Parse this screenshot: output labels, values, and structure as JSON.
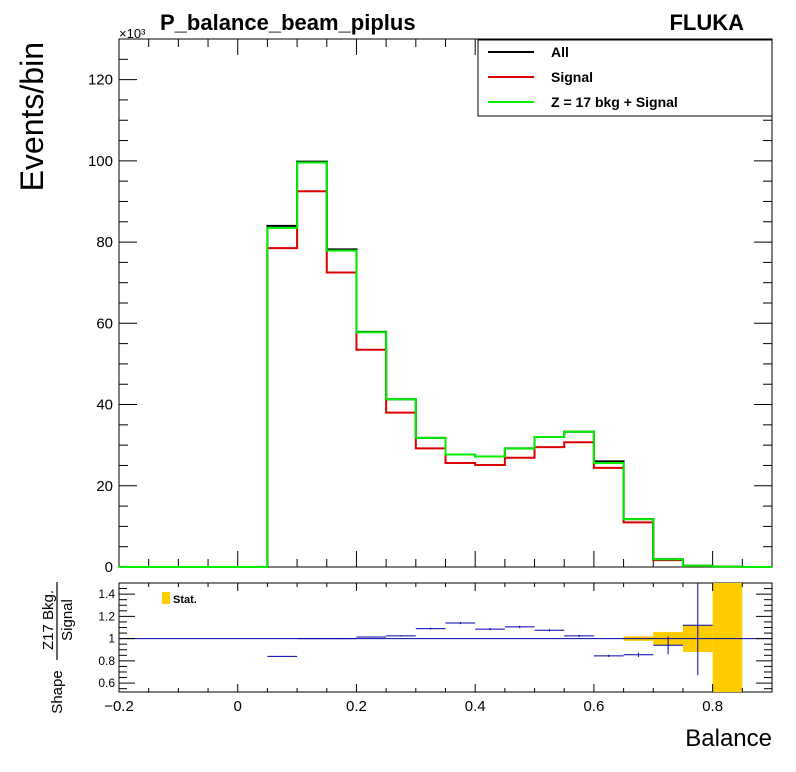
{
  "chart_data": [
    {
      "type": "line",
      "panel": "main",
      "title": "P_balance_beam_piplus",
      "generator_label": "FLUKA",
      "ylabel": "Events/bin",
      "y_multiplier_label": "×10³",
      "ylim": [
        0,
        130
      ],
      "xlim": [
        -0.2,
        0.9
      ],
      "yticks": [
        "0",
        "20",
        "40",
        "60",
        "80",
        "100",
        "120"
      ],
      "ytick_values": [
        0,
        20,
        40,
        60,
        80,
        100,
        120
      ],
      "legend_position": "top-right",
      "bin_edges": [
        -0.2,
        -0.15,
        -0.1,
        -0.05,
        0.0,
        0.05,
        0.1,
        0.15,
        0.2,
        0.25,
        0.3,
        0.35,
        0.4,
        0.45,
        0.5,
        0.55,
        0.6,
        0.65,
        0.7,
        0.75,
        0.8,
        0.85,
        0.9
      ],
      "series": [
        {
          "name": "All",
          "color": "#000000",
          "values": [
            0,
            0,
            0,
            0,
            0,
            84,
            99.8,
            78.2,
            57.9,
            41.3,
            31.8,
            27.7,
            27.2,
            29.2,
            32.0,
            33.3,
            26.0,
            11.8,
            1.9,
            0.3,
            0.1,
            0.0
          ]
        },
        {
          "name": "Signal",
          "color": "#dd0000",
          "values": [
            0,
            0,
            0,
            0,
            0,
            78.5,
            92.5,
            72.5,
            53.5,
            38.0,
            29.2,
            25.6,
            25.1,
            26.9,
            29.5,
            30.7,
            24.4,
            11.0,
            1.7,
            0.25,
            0.08,
            0.0
          ]
        },
        {
          "name": "Z = 17 bkg + Signal",
          "color": "#00ee00",
          "values": [
            0,
            0,
            0,
            0,
            0,
            83.5,
            99.6,
            77.9,
            57.8,
            41.3,
            31.8,
            27.7,
            27.2,
            29.2,
            32.0,
            33.3,
            25.6,
            11.8,
            1.9,
            0.3,
            0.1,
            0.0
          ]
        }
      ]
    },
    {
      "type": "scatter",
      "panel": "ratio",
      "ylabel_prefix": "Shape",
      "ylabel_numerator": "Z17 Bkg.",
      "ylabel_denominator": "Signal",
      "xlabel": "Balance",
      "ylim": [
        0.52,
        1.5
      ],
      "xlim": [
        -0.2,
        0.9
      ],
      "yticks": [
        "0.6",
        "0.8",
        "1",
        "1.2",
        "1.4"
      ],
      "ytick_values": [
        0.6,
        0.8,
        1.0,
        1.2,
        1.4
      ],
      "xticks": [
        "−0.2",
        "0",
        "0.2",
        "0.4",
        "0.6",
        "0.8"
      ],
      "xtick_values": [
        -0.2,
        0.0,
        0.2,
        0.4,
        0.6,
        0.8
      ],
      "reference_line": 1.0,
      "legend_entry": "Stat.",
      "stat_band_color": "#ffcc00",
      "point_color": "#0000aa",
      "points": [
        {
          "x": 0.075,
          "y": 0.84,
          "err": 0.005
        },
        {
          "x": 0.125,
          "y": 1.0,
          "err": 0.005
        },
        {
          "x": 0.175,
          "y": 1.0,
          "err": 0.005
        },
        {
          "x": 0.225,
          "y": 1.015,
          "err": 0.005
        },
        {
          "x": 0.275,
          "y": 1.025,
          "err": 0.006
        },
        {
          "x": 0.325,
          "y": 1.09,
          "err": 0.008
        },
        {
          "x": 0.375,
          "y": 1.14,
          "err": 0.01
        },
        {
          "x": 0.425,
          "y": 1.085,
          "err": 0.01
        },
        {
          "x": 0.475,
          "y": 1.105,
          "err": 0.01
        },
        {
          "x": 0.525,
          "y": 1.075,
          "err": 0.01
        },
        {
          "x": 0.575,
          "y": 1.025,
          "err": 0.01
        },
        {
          "x": 0.625,
          "y": 0.845,
          "err": 0.01
        },
        {
          "x": 0.675,
          "y": 0.855,
          "err": 0.02
        },
        {
          "x": 0.725,
          "y": 0.94,
          "err": 0.08
        },
        {
          "x": 0.775,
          "y": 1.12,
          "err": 0.45
        }
      ],
      "stat_band": [
        {
          "x0": 0.65,
          "x1": 0.7,
          "lo": 0.98,
          "hi": 1.02
        },
        {
          "x0": 0.7,
          "x1": 0.75,
          "lo": 0.94,
          "hi": 1.06
        },
        {
          "x0": 0.75,
          "x1": 0.8,
          "lo": 0.88,
          "hi": 1.12
        },
        {
          "x0": 0.8,
          "x1": 0.85,
          "lo": 0.52,
          "hi": 1.5
        }
      ]
    }
  ]
}
